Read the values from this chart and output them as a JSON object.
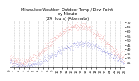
{
  "title": "Milwaukee Weather  Outdoor Temp / Dew Point\nby Minute\n(24 Hours) (Alternate)",
  "title_fontsize": 3.5,
  "bg_color": "#ffffff",
  "red_color": "#dd0000",
  "blue_color": "#0000bb",
  "ylim": [
    20,
    72
  ],
  "yticks": [
    25,
    30,
    35,
    40,
    45,
    50,
    55,
    60,
    65,
    70
  ],
  "ytick_fontsize": 3.2,
  "xtick_fontsize": 2.8,
  "grid_color": "#999999",
  "num_points": 1440
}
